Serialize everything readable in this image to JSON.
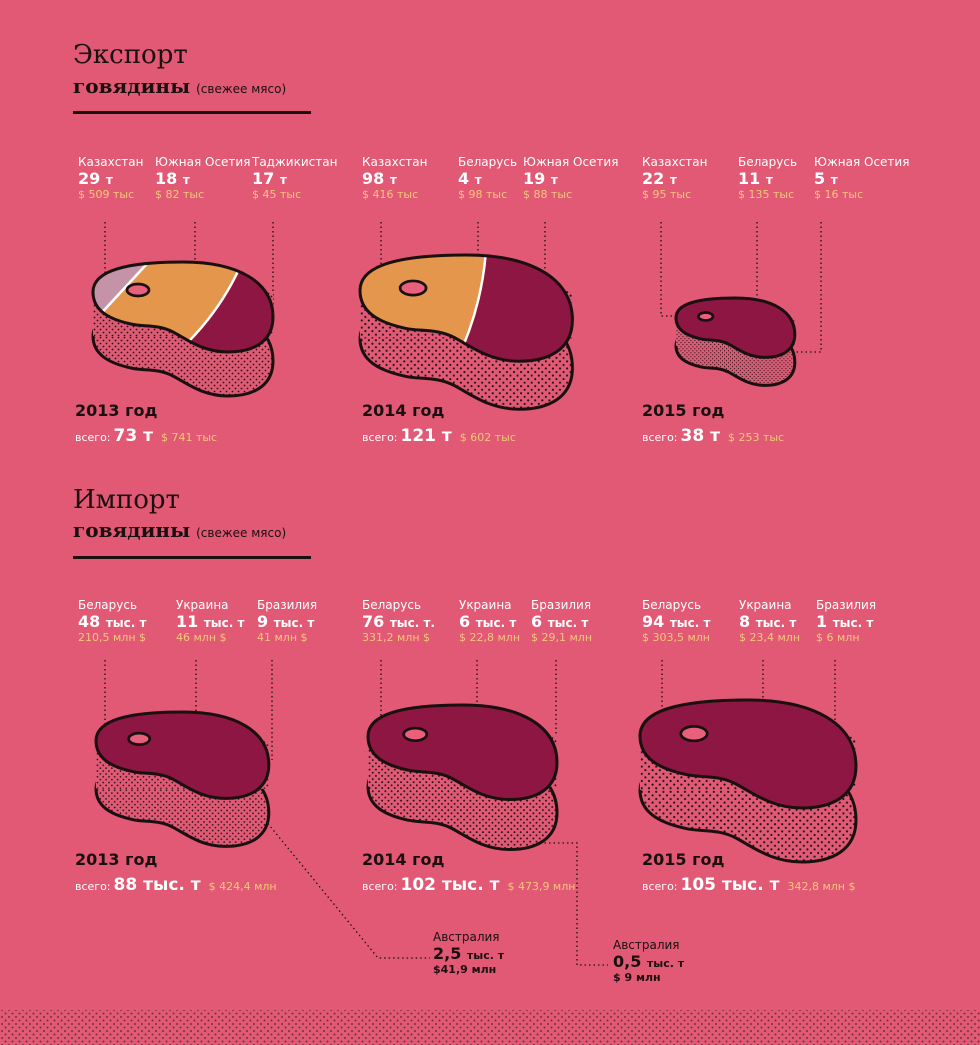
{
  "colors": {
    "background": "#E15974",
    "meat": "#8E1642",
    "orange": "#E3964C",
    "tan": "#C88D68",
    "lilac": "#C593A8",
    "side": "#E05A76",
    "outline": "#1a1010",
    "money": "#F6C77A"
  },
  "export": {
    "title": "Экспорт",
    "subtitle": "говядины",
    "note": "(свежее мясо)",
    "total_label": "всего:",
    "years": [
      {
        "year": "2013 год",
        "total": "73 т",
        "total_money": "$ 741 тыс",
        "countries": [
          {
            "name": "Казахстан",
            "num": "29",
            "unit": "т",
            "money": "$ 509 тыс"
          },
          {
            "name": "Южная Осетия",
            "num": "18",
            "unit": "т",
            "money": "$ 82 тыс"
          },
          {
            "name": "Таджикистан",
            "num": "17",
            "unit": "т",
            "money": "$ 45 тыс"
          }
        ]
      },
      {
        "year": "2014 год",
        "total": "121 т",
        "total_money": "$ 602 тыс",
        "countries": [
          {
            "name": "Казахстан",
            "num": "98",
            "unit": "т",
            "money": "$ 416 тыс"
          },
          {
            "name": "Беларусь",
            "num": "4",
            "unit": "т",
            "money": "$ 98 тыс"
          },
          {
            "name": "Южная Осетия",
            "num": "19",
            "unit": "т",
            "money": "$ 88 тыс"
          }
        ]
      },
      {
        "year": "2015 год",
        "total": "38 т",
        "total_money": "$ 253 тыс",
        "countries": [
          {
            "name": "Казахстан",
            "num": "22",
            "unit": "т",
            "money": "$ 95 тыс"
          },
          {
            "name": "Беларусь",
            "num": "11",
            "unit": "т",
            "money": "$ 135 тыс"
          },
          {
            "name": "Южная Осетия",
            "num": "5",
            "unit": "т",
            "money": "$ 16 тыс"
          }
        ]
      }
    ]
  },
  "import": {
    "title": "Импорт",
    "subtitle": "говядины",
    "note": "(свежее мясо)",
    "total_label": "всего:",
    "years": [
      {
        "year": "2013 год",
        "total": "88 тыс. т",
        "total_money": "$ 424,4 млн",
        "countries": [
          {
            "name": "Беларусь",
            "num": "48",
            "unit": "тыс. т",
            "money": "210,5 млн $"
          },
          {
            "name": "Украина",
            "num": "11",
            "unit": "тыс. т",
            "money": "46 млн $"
          },
          {
            "name": "Бразилия",
            "num": "9",
            "unit": "тыс. т",
            "money": "41 млн $"
          }
        ]
      },
      {
        "year": "2014 год",
        "total": "102 тыс. т",
        "total_money": "$ 473,9 млн",
        "countries": [
          {
            "name": "Беларусь",
            "num": "76",
            "unit": "тыс. т.",
            "money": "331,2 млн $"
          },
          {
            "name": "Украина",
            "num": "6",
            "unit": "тыс. т",
            "money": "$ 22,8 млн"
          },
          {
            "name": "Бразилия",
            "num": "6",
            "unit": "тыс. т",
            "money": "$ 29,1 млн"
          }
        ]
      },
      {
        "year": "2015 год",
        "total": "105 тыс. т",
        "total_money": "342,8 млн $",
        "countries": [
          {
            "name": "Беларусь",
            "num": "94",
            "unit": "тыс. т",
            "money": "$ 303,5 млн"
          },
          {
            "name": "Украина",
            "num": "8",
            "unit": "тыс. т",
            "money": "$ 23,4 млн"
          },
          {
            "name": "Бразилия",
            "num": "1",
            "unit": "тыс. т",
            "money": "$ 6 млн"
          }
        ]
      }
    ],
    "australia": [
      {
        "name": "Австралия",
        "num": "2,5",
        "unit": "тыс. т",
        "money": "$41,9 млн"
      },
      {
        "name": "Австралия",
        "num": "0,5",
        "unit": "тыс. т",
        "money": "$ 9 млн"
      }
    ]
  },
  "chart_data": [
    {
      "type": "pie",
      "title": "Экспорт говядины (свежее мясо) — 2013 год",
      "categories": [
        "Казахстан",
        "Южная Осетия",
        "Таджикистан"
      ],
      "values": [
        29,
        18,
        17
      ],
      "unit": "т",
      "money": [
        "$ 509 тыс",
        "$ 82 тыс",
        "$ 45 тыс"
      ],
      "total": 73,
      "total_money": "$ 741 тыс"
    },
    {
      "type": "pie",
      "title": "Экспорт говядины (свежее мясо) — 2014 год",
      "categories": [
        "Казахстан",
        "Беларусь",
        "Южная Осетия"
      ],
      "values": [
        98,
        4,
        19
      ],
      "unit": "т",
      "money": [
        "$ 416 тыс",
        "$ 98 тыс",
        "$ 88 тыс"
      ],
      "total": 121,
      "total_money": "$ 602 тыс"
    },
    {
      "type": "pie",
      "title": "Экспорт говядины (свежее мясо) — 2015 год",
      "categories": [
        "Казахстан",
        "Беларусь",
        "Южная Осетия"
      ],
      "values": [
        22,
        11,
        5
      ],
      "unit": "т",
      "money": [
        "$ 95 тыс",
        "$ 135 тыс",
        "$ 16 тыс"
      ],
      "total": 38,
      "total_money": "$ 253 тыс"
    },
    {
      "type": "pie",
      "title": "Импорт говядины (свежее мясо) — 2013 год",
      "categories": [
        "Беларусь",
        "Украина",
        "Бразилия",
        "Австралия"
      ],
      "values": [
        48,
        11,
        9,
        2.5
      ],
      "unit": "тыс. т",
      "money": [
        "210,5 млн $",
        "46 млн $",
        "41 млн $",
        "$41,9 млн"
      ],
      "total": 88,
      "total_money": "$ 424,4 млн"
    },
    {
      "type": "pie",
      "title": "Импорт говядины (свежее мясо) — 2014 год",
      "categories": [
        "Беларусь",
        "Украина",
        "Бразилия",
        "Австралия"
      ],
      "values": [
        76,
        6,
        6,
        0.5
      ],
      "unit": "тыс. т",
      "money": [
        "331,2 млн $",
        "$ 22,8 млн",
        "$ 29,1 млн",
        "$ 9 млн"
      ],
      "total": 102,
      "total_money": "$ 473,9 млн"
    },
    {
      "type": "pie",
      "title": "Импорт говядины (свежее мясо) — 2015 год",
      "categories": [
        "Беларусь",
        "Украина",
        "Бразилия"
      ],
      "values": [
        94,
        8,
        1
      ],
      "unit": "тыс. т",
      "money": [
        "$ 303,5 млн",
        "$ 23,4 млн",
        "$ 6 млн"
      ],
      "total": 105,
      "total_money": "342,8 млн $"
    }
  ]
}
